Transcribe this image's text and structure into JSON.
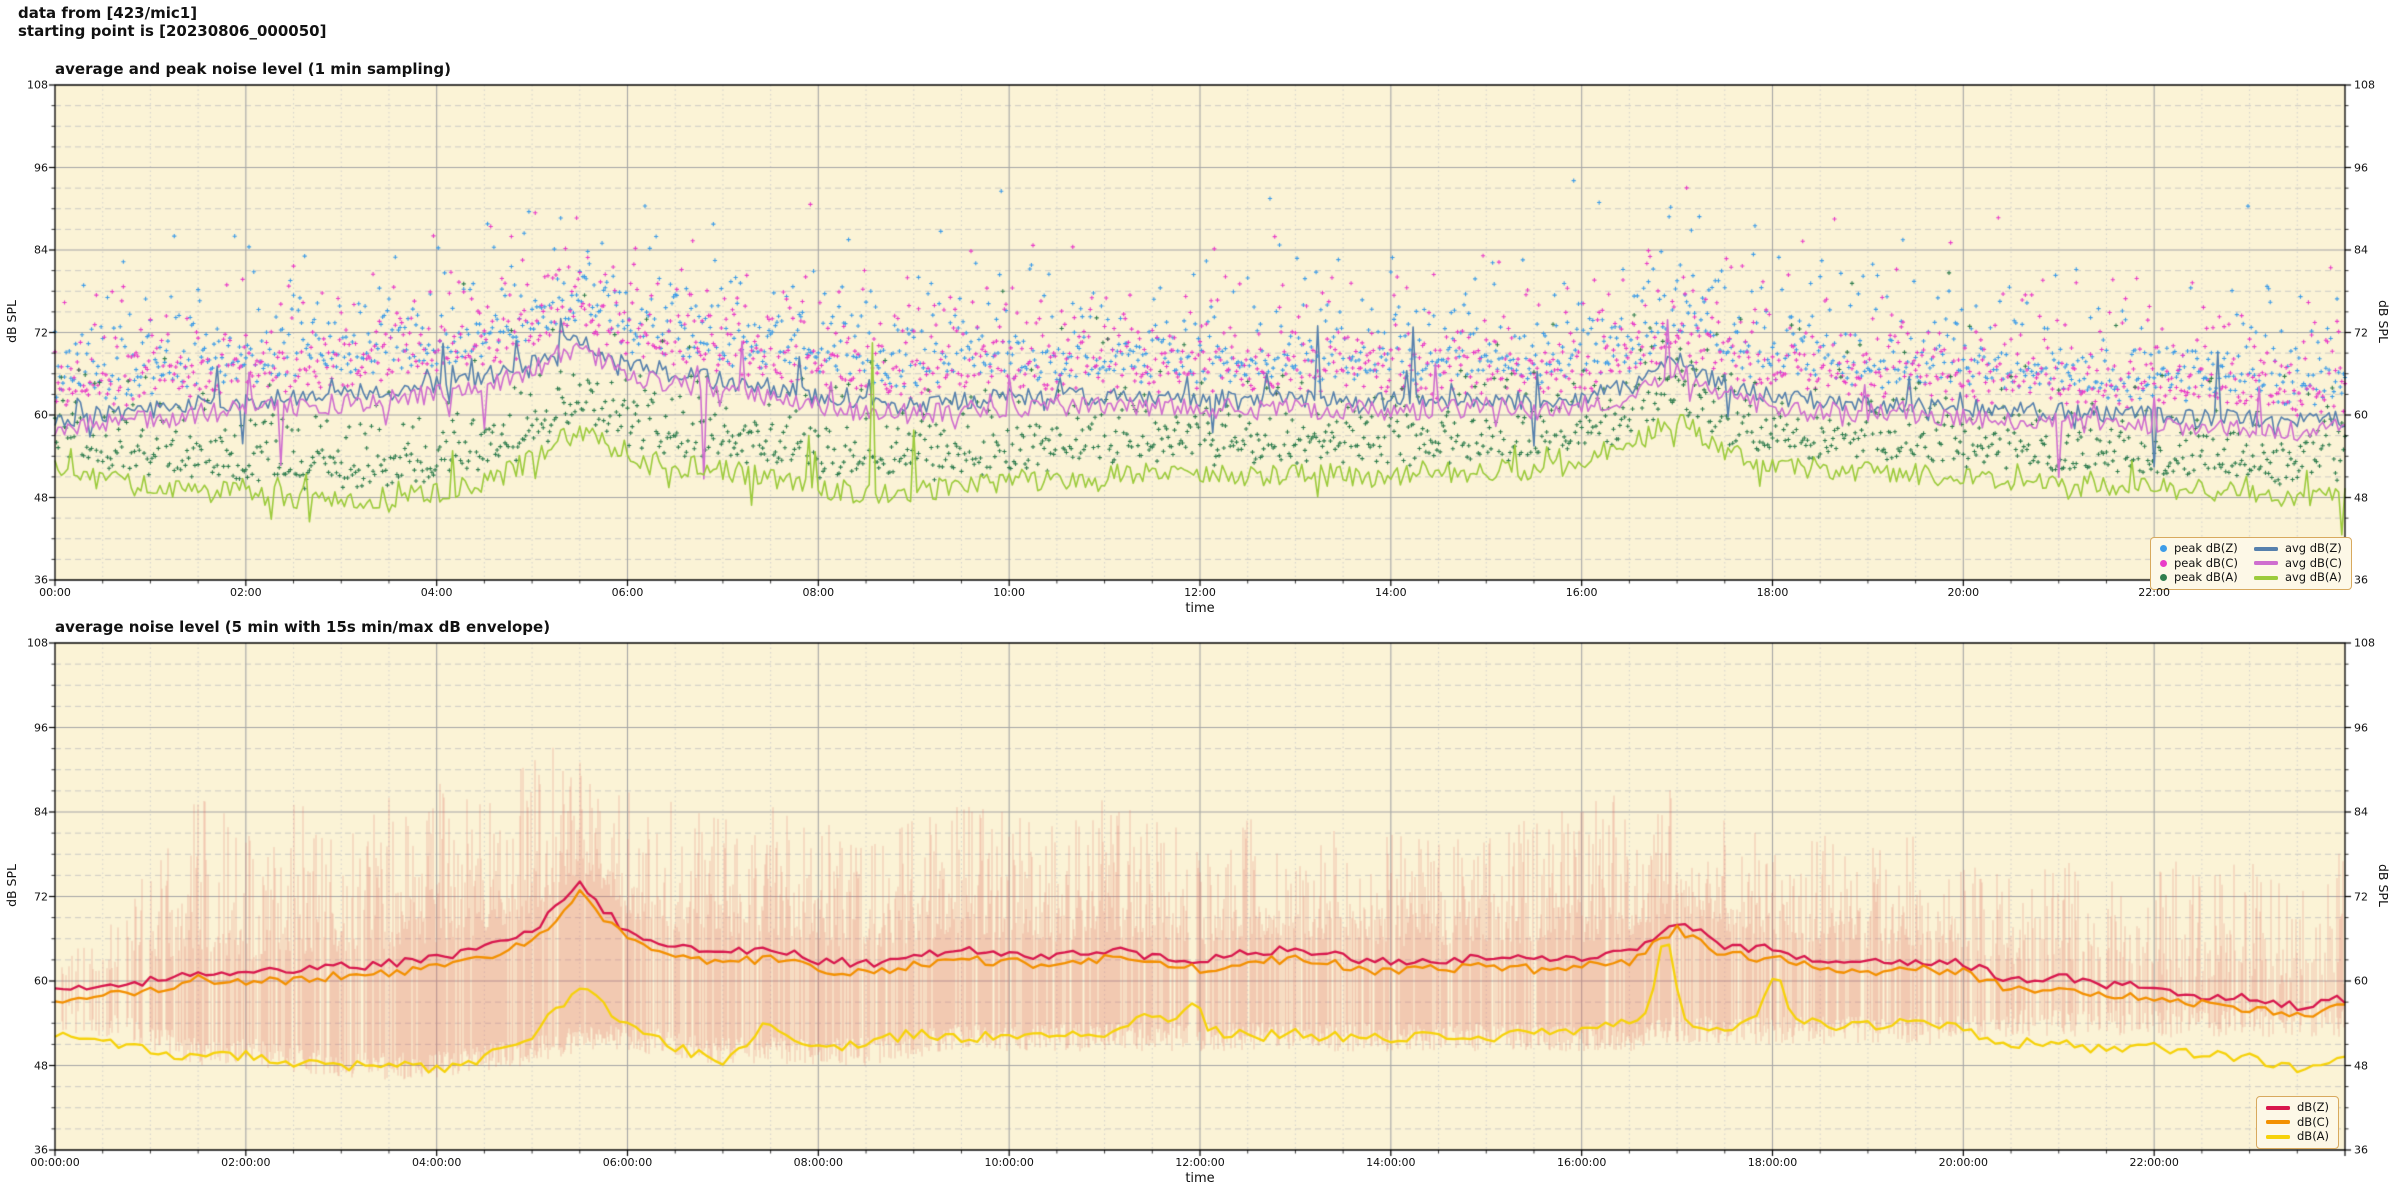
{
  "header": {
    "line1": "data from [423/mic1]",
    "line2": "starting point is [20230806_000050]"
  },
  "palette": {
    "plot_bg": "#fbf3d6",
    "spine": "#000000",
    "grid_major": "#a6a6a6",
    "grid_minor_h": "#c2c2c2",
    "grid_minor_v": "#cccccc",
    "avg_z": "#5680ad",
    "avg_c": "#cf6ecf",
    "avg_a": "#9ccb3c",
    "peak_z": "#3d9ce8",
    "peak_c": "#e93cc8",
    "peak_a": "#2f7d4e",
    "db_z_5min": "#d8174d",
    "db_c_5min": "#f39000",
    "db_a_5min": "#f6d20a",
    "envelope": "rgba(224,108,96,0.35)",
    "legend_bg": "#fdf8e7",
    "legend_border": "#d8a95e"
  },
  "charts": [
    {
      "title": "average and peak noise level (1 min sampling)",
      "xlabel": "time",
      "ylabel": "dB SPL",
      "x_tick_labels": [
        "00:00",
        "02:00",
        "04:00",
        "06:00",
        "08:00",
        "10:00",
        "12:00",
        "14:00",
        "16:00",
        "18:00",
        "20:00",
        "22:00"
      ],
      "y_tick_labels": [
        "36",
        "48",
        "60",
        "72",
        "84",
        "96",
        "108"
      ],
      "legend_scatter": [
        {
          "label": "peak dB(Z)",
          "color_key": "peak_z"
        },
        {
          "label": "peak dB(C)",
          "color_key": "peak_c"
        },
        {
          "label": "peak dB(A)",
          "color_key": "peak_a"
        }
      ],
      "legend_lines": [
        {
          "label": "avg dB(Z)",
          "color_key": "avg_z"
        },
        {
          "label": "avg dB(C)",
          "color_key": "avg_c"
        },
        {
          "label": "avg dB(A)",
          "color_key": "avg_a"
        }
      ]
    },
    {
      "title": "average noise level (5 min with 15s min/max dB envelope)",
      "xlabel": "time",
      "ylabel": "dB SPL",
      "x_tick_labels": [
        "00:00:00",
        "02:00:00",
        "04:00:00",
        "06:00:00",
        "08:00:00",
        "10:00:00",
        "12:00:00",
        "14:00:00",
        "16:00:00",
        "18:00:00",
        "20:00:00",
        "22:00:00"
      ],
      "y_tick_labels": [
        "36",
        "48",
        "60",
        "72",
        "84",
        "96",
        "108"
      ],
      "legend_lines": [
        {
          "label": "dB(Z)",
          "color_key": "db_z_5min"
        },
        {
          "label": "dB(C)",
          "color_key": "db_c_5min"
        },
        {
          "label": "dB(A)",
          "color_key": "db_a_5min"
        }
      ]
    }
  ],
  "chart_data": [
    {
      "type": "line",
      "subtype": "avg lines with peak scatter",
      "title": "average and peak noise level (1 min sampling)",
      "xlabel": "time",
      "ylabel": "dB SPL",
      "x_unit": "hours",
      "x_range": [
        0,
        24
      ],
      "ylim": [
        36,
        108
      ],
      "y_major_step": 12,
      "y_minor_step": 3,
      "x_major_step_h": 2,
      "x_minor_step_h": 0.5,
      "grid": "major solid + minor dashed",
      "legend_position": "lower right",
      "sampling_minutes": 1,
      "anchor_step_minutes": 30,
      "series": [
        {
          "name": "avg dB(Z)",
          "role": "line",
          "color_key": "avg_z",
          "seed": 101,
          "noise": 1.4,
          "spike_prob": 0.06,
          "spike_scale": 3.2,
          "anchors_30min": [
            59.5,
            60,
            60.5,
            61.5,
            62,
            62.5,
            63,
            63.5,
            64.5,
            65.5,
            68,
            71.5,
            67,
            66,
            65,
            64,
            62.5,
            61.5,
            61.5,
            62,
            62.5,
            62.5,
            63,
            62.5,
            62.5,
            62,
            62.5,
            62,
            62,
            62,
            62.5,
            62,
            62.5,
            64,
            68,
            64.5,
            62.5,
            62,
            61.5,
            61.5,
            61,
            60.5,
            60.5,
            60,
            60,
            59.5,
            59.5,
            59,
            59.5
          ]
        },
        {
          "name": "avg dB(C)",
          "role": "line",
          "color_key": "avg_c",
          "seed": 202,
          "noise": 1.5,
          "spike_prob": 0.06,
          "spike_scale": 3.0,
          "anchors_30min": [
            58.2,
            58.7,
            59.2,
            60.2,
            60.7,
            61.2,
            61.7,
            62.2,
            63.2,
            64.2,
            66.7,
            70.2,
            65.7,
            64.7,
            63.7,
            62.7,
            61.2,
            60.2,
            60.2,
            60.7,
            61.2,
            61.2,
            61.7,
            61.2,
            61.2,
            60.7,
            61.2,
            60.7,
            60.7,
            60.7,
            61.2,
            60.7,
            61.2,
            62.7,
            66.7,
            63.2,
            61.2,
            60.7,
            60.2,
            60.2,
            59.7,
            59.2,
            59.2,
            58.7,
            58.7,
            58.2,
            58.2,
            57.7,
            58.2
          ]
        },
        {
          "name": "avg dB(A)",
          "role": "line",
          "color_key": "avg_a",
          "seed": 303,
          "noise": 1.6,
          "spike_prob": 0.05,
          "spike_scale": 2.8,
          "anchors_30min": [
            52,
            50.5,
            49.5,
            49,
            48.5,
            48,
            47.5,
            48,
            48.5,
            50,
            53.5,
            58,
            54,
            52.5,
            52,
            51,
            49.5,
            48.5,
            49,
            49.5,
            50.5,
            50.5,
            51,
            52,
            51.5,
            51,
            51.5,
            51,
            51,
            51.5,
            52,
            52,
            53,
            55.5,
            59.5,
            54.5,
            52.5,
            52,
            52,
            51.5,
            51,
            50.5,
            50,
            49.5,
            49.5,
            49,
            48.5,
            48,
            49
          ]
        },
        {
          "name": "peak dB(Z)",
          "role": "scatter",
          "color_key": "peak_z",
          "seed": 404,
          "base": "avg dB(Z)",
          "offset": 3.5,
          "exp_scale": 4.2,
          "cap": 96
        },
        {
          "name": "peak dB(C)",
          "role": "scatter",
          "color_key": "peak_c",
          "seed": 505,
          "base": "avg dB(C)",
          "offset": 3.2,
          "exp_scale": 4.5,
          "cap": 95
        },
        {
          "name": "peak dB(A)",
          "role": "scatter",
          "color_key": "peak_a",
          "seed": 606,
          "base": "avg dB(A)",
          "offset": 2.5,
          "exp_scale": 4.0,
          "cap": 82
        }
      ]
    },
    {
      "type": "line",
      "subtype": "5-min avg lines with 15s min/max envelope",
      "title": "average noise level (5 min with 15s min/max dB envelope)",
      "xlabel": "time",
      "ylabel": "dB SPL",
      "x_unit": "hours",
      "x_range": [
        0,
        24
      ],
      "ylim": [
        36,
        108
      ],
      "y_major_step": 12,
      "y_minor_step": 3,
      "x_major_step_h": 2,
      "x_minor_step_h": 0.5,
      "legend_position": "lower right",
      "sampling_minutes": 5,
      "anchor_step_minutes": 30,
      "series": [
        {
          "name": "dB(Z)",
          "role": "line",
          "color_key": "db_z_5min",
          "seed": 711,
          "noise": 0.65,
          "anchors_30min": [
            58.5,
            59.5,
            60,
            61.5,
            61,
            61.5,
            62,
            62.5,
            63.5,
            64.5,
            67,
            73.5,
            67,
            65,
            64,
            64.5,
            63,
            62.5,
            63.5,
            64.5,
            64,
            63.5,
            64.5,
            63.5,
            63,
            64,
            64.5,
            63.5,
            62.5,
            63,
            63.5,
            63,
            63.5,
            64,
            68.5,
            65,
            64.5,
            63,
            62.5,
            63,
            62.5,
            60,
            60.5,
            59.5,
            59,
            58,
            57.5,
            56.5,
            57.5
          ],
          "spikes": []
        },
        {
          "name": "dB(C)",
          "role": "line",
          "color_key": "db_c_5min",
          "seed": 822,
          "noise": 0.65,
          "anchors_30min": [
            57.2,
            58.2,
            58.7,
            60.2,
            59.7,
            60.2,
            60.7,
            61.2,
            62.2,
            63.2,
            65.6,
            72.4,
            65.7,
            63.7,
            62.7,
            63.2,
            61.7,
            61.2,
            62.2,
            63.2,
            62.7,
            62.2,
            63.2,
            62.2,
            61.7,
            62.7,
            63.2,
            62.2,
            61.2,
            61.7,
            62.2,
            61.7,
            62.2,
            62.7,
            67.4,
            63.7,
            63.2,
            61.7,
            61.2,
            61.7,
            61.2,
            58.7,
            59.2,
            58.2,
            57.7,
            56.7,
            56.2,
            55.2,
            56.2
          ],
          "spikes": []
        },
        {
          "name": "dB(A)",
          "role": "line",
          "color_key": "db_a_5min",
          "seed": 933,
          "noise": 0.8,
          "anchors_30min": [
            52.5,
            51.5,
            50,
            49.5,
            49.5,
            48,
            48,
            48.5,
            47.5,
            49,
            52,
            59.5,
            53.5,
            50.5,
            48.5,
            52,
            50.5,
            51,
            52.5,
            52,
            52,
            53,
            52.5,
            55,
            53.5,
            52,
            52.5,
            52,
            52,
            52.5,
            52,
            52.5,
            53,
            54.5,
            53.5,
            53.5,
            54,
            54,
            53.5,
            54,
            53,
            51,
            51.5,
            50,
            50.5,
            49.5,
            49,
            47.5,
            49
          ],
          "spikes": [
            {
              "t": 16.88,
              "amp": 12,
              "w": 0.13
            },
            {
              "t": 18.02,
              "amp": 6.5,
              "w": 0.16
            },
            {
              "t": 11.92,
              "amp": 3,
              "w": 0.12
            },
            {
              "t": 7.45,
              "amp": 2.5,
              "w": 0.15
            }
          ]
        }
      ],
      "envelope": {
        "applies_to": "dB(Z)",
        "color_key": "envelope",
        "seed": 999,
        "max_anchors_30min": [
          63,
          67,
          74,
          85,
          81,
          84,
          83,
          85,
          87,
          86,
          90,
          95,
          86,
          84,
          82,
          84,
          80,
          78,
          82,
          84,
          83,
          80,
          85,
          82,
          80,
          82,
          80,
          78,
          80,
          79,
          80,
          82,
          84,
          86,
          85,
          82,
          80,
          79,
          78,
          80,
          76,
          74,
          76,
          74,
          76,
          74,
          75,
          72,
          83
        ],
        "min_anchors_30min": [
          55,
          54,
          52,
          50,
          50,
          49,
          48,
          48,
          48,
          49,
          50,
          52,
          52,
          51,
          50,
          50,
          50,
          50,
          51,
          52,
          52,
          52,
          52,
          52,
          52,
          52,
          52,
          52,
          52,
          52,
          52,
          52,
          52,
          52,
          53,
          53,
          53,
          53,
          53,
          53,
          53,
          54,
          54,
          54,
          54,
          54,
          54,
          54,
          54
        ],
        "density_anchors_30min": [
          0.25,
          0.35,
          0.55,
          0.8,
          0.75,
          0.8,
          0.8,
          0.85,
          0.9,
          0.85,
          0.9,
          0.95,
          0.85,
          0.8,
          0.8,
          0.8,
          0.7,
          0.7,
          0.8,
          0.85,
          0.8,
          0.75,
          0.85,
          0.8,
          0.75,
          0.8,
          0.75,
          0.7,
          0.75,
          0.7,
          0.7,
          0.8,
          0.85,
          0.9,
          0.85,
          0.8,
          0.75,
          0.7,
          0.7,
          0.75,
          0.6,
          0.55,
          0.6,
          0.55,
          0.6,
          0.55,
          0.6,
          0.5,
          0.65
        ]
      }
    }
  ]
}
